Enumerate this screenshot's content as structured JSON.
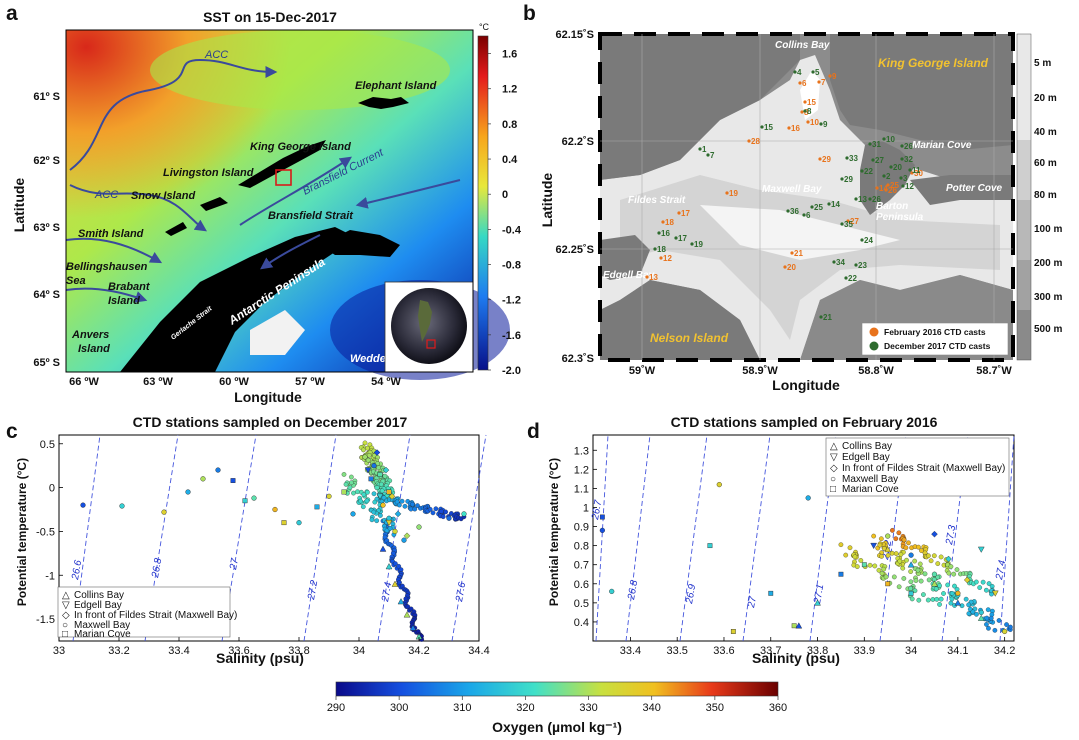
{
  "panels": {
    "a": {
      "letter": "a",
      "title": "SST on 15-Dec-2017",
      "xlabel": "Longitude",
      "ylabel": "Latitude",
      "x_ticks": [
        "66 ºW",
        "63 ºW",
        "60 ºW",
        "57 ºW",
        "54 ºW"
      ],
      "y_ticks": [
        "61º S",
        "62º S",
        "63º S",
        "64º S",
        "65º S"
      ],
      "colorbar_unit": "°C",
      "colorbar_ticks": [
        "1.6",
        "1.2",
        "0.8",
        "0.4",
        "0",
        "-0.4",
        "-0.8",
        "-1.2",
        "-1.6",
        "-2.0"
      ],
      "labels": {
        "acc1": "ACC",
        "acc2": "ACC",
        "elephant": "Elephant Island",
        "king_george": "King George Island",
        "livingston": "Livingston Island",
        "snow": "Snow Island",
        "smith": "Smith Island",
        "bransfield_current": "Bransfield Current",
        "bransfield_strait": "Bransfield Strait",
        "bellingshausen1": "Bellingshausen",
        "bellingshausen2": "Sea",
        "brabant1": "Brabant",
        "brabant2": "Island",
        "gerlache": "Gerlache Strait",
        "antarctic_peninsula": "Antarctic Peninsula",
        "anvers1": "Anvers",
        "anvers2": "Island",
        "weddell": "Weddell Sea"
      },
      "colors": {
        "land": "#000000",
        "arrow": "#3a4a9c"
      }
    },
    "b": {
      "letter": "b",
      "xlabel": "Longitude",
      "ylabel": "Latitude",
      "x_ticks": [
        "59˚W",
        "58.9˚W",
        "58.8˚W",
        "58.7˚W"
      ],
      "y_ticks": [
        "62.15˚S",
        "62.2˚S",
        "62.25˚S",
        "62.3˚S"
      ],
      "depth_ticks": [
        "5 m",
        "20 m",
        "40 m",
        "60 m",
        "80 m",
        "100 m",
        "200 m",
        "300 m",
        "500 m"
      ],
      "labels": {
        "collins": "Collins Bay",
        "kgi": "King George Island",
        "marian": "Marian Cove",
        "fildes": "Fildes Strait",
        "maxwell": "Maxwell Bay",
        "barton1": "Barton",
        "barton2": "Peninsula",
        "potter": "Potter Cove",
        "edgell": "Edgell Bay",
        "nelson": "Nelson Island"
      },
      "legend": [
        "February 2016 CTD casts",
        "December 2017 CTD casts"
      ],
      "colors": {
        "feb2016": "#e8731c",
        "dec2017": "#2e6b2e",
        "land": "#7a7a7a"
      },
      "stations_feb2016": [
        "6",
        "7",
        "8",
        "9",
        "10",
        "15",
        "16",
        "28",
        "29",
        "19",
        "18",
        "17",
        "12",
        "13",
        "21",
        "20",
        "27",
        "30",
        "14",
        "26",
        "25"
      ],
      "stations_dec2017": [
        "4",
        "5",
        "15",
        "8",
        "9",
        "1",
        "7",
        "31",
        "10",
        "26",
        "33",
        "27",
        "20",
        "22",
        "29",
        "2",
        "11",
        "3",
        "32",
        "12",
        "36",
        "25",
        "14",
        "13",
        "26",
        "6",
        "35",
        "24",
        "34",
        "23",
        "22",
        "21",
        "19",
        "17",
        "16",
        "18"
      ]
    },
    "c": {
      "letter": "c",
      "title": "CTD stations sampled on December 2017",
      "xlabel": "Salinity (psu)",
      "ylabel": "Potential temperature (°C)",
      "x_ticks": [
        "33",
        "33.2",
        "33.4",
        "33.6",
        "33.8",
        "34",
        "34.2",
        "34.4"
      ],
      "y_ticks": [
        "0.5",
        "0",
        "-0.5",
        "-1",
        "-1.5"
      ],
      "contours": [
        "26.6",
        "26.8",
        "27",
        "27.2",
        "27.4",
        "27.6"
      ],
      "legend": [
        "Collins Bay",
        "Edgell Bay",
        "In front of Fildes Strait (Maxwell Bay)",
        "Maxwell Bay",
        "Marian Cove"
      ]
    },
    "d": {
      "letter": "d",
      "title": "CTD stations sampled on February 2016",
      "xlabel": "Salinity (psu)",
      "ylabel": "Potential temperature (°C)",
      "x_ticks": [
        "33.4",
        "33.5",
        "33.6",
        "33.7",
        "33.8",
        "33.9",
        "34",
        "34.1",
        "34.2"
      ],
      "y_ticks": [
        "1.3",
        "1.2",
        "1.1",
        "1",
        "0.9",
        "0.8",
        "0.7",
        "0.6",
        "0.5",
        "0.4"
      ],
      "contours": [
        "26.7",
        "26.8",
        "26.9",
        "27",
        "27.1",
        "27.2",
        "27.3",
        "27.4"
      ],
      "legend": [
        "Collins Bay",
        "Edgell Bay",
        "In front of Fildes Strait (Maxwell Bay)",
        "Maxwell Bay",
        "Marian Cove"
      ]
    },
    "oxygen_colorbar": {
      "label": "Oxygen (µmol kg⁻¹)",
      "ticks": [
        "290",
        "300",
        "310",
        "320",
        "330",
        "340",
        "350",
        "360"
      ]
    }
  },
  "chart_data": [
    {
      "type": "scatter",
      "title": "CTD stations sampled on December 2017",
      "xlabel": "Salinity (psu)",
      "ylabel": "Potential temperature (°C)",
      "xlim": [
        33,
        34.4
      ],
      "ylim": [
        -1.75,
        0.6
      ],
      "colorbar": {
        "label": "Oxygen (µmol kg⁻¹)",
        "range": [
          290,
          360
        ]
      },
      "series": [
        {
          "name": "Maxwell Bay",
          "points": [
            [
              33.08,
              -0.2
            ],
            [
              33.21,
              -0.21
            ],
            [
              33.35,
              -0.28
            ],
            [
              33.43,
              -0.05
            ],
            [
              33.48,
              0.1
            ],
            [
              33.53,
              0.2
            ],
            [
              33.65,
              -0.12
            ],
            [
              33.72,
              -0.25
            ],
            [
              33.8,
              -0.4
            ],
            [
              33.9,
              -0.1
            ],
            [
              33.98,
              -0.3
            ],
            [
              34.02,
              0.35
            ],
            [
              34.05,
              0.25
            ],
            [
              34.06,
              0.0
            ],
            [
              34.08,
              -0.2
            ],
            [
              34.1,
              -0.35
            ],
            [
              34.12,
              -0.5
            ],
            [
              34.15,
              -0.6
            ],
            [
              34.2,
              -0.45
            ],
            [
              34.3,
              -0.35
            ],
            [
              34.35,
              -0.3
            ]
          ]
        },
        {
          "name": "Collins Bay",
          "points": [
            [
              34.08,
              -0.7
            ],
            [
              34.1,
              -0.9
            ],
            [
              34.12,
              -1.1
            ],
            [
              34.14,
              -1.3
            ],
            [
              34.16,
              -1.45
            ],
            [
              34.18,
              -1.6
            ],
            [
              34.2,
              -1.7
            ]
          ]
        },
        {
          "name": "Marian Cove",
          "points": [
            [
              33.58,
              0.08
            ],
            [
              33.62,
              -0.15
            ],
            [
              33.75,
              -0.4
            ],
            [
              33.86,
              -0.22
            ],
            [
              33.95,
              -0.05
            ],
            [
              34.04,
              0.1
            ],
            [
              34.07,
              0.15
            ],
            [
              34.1,
              -0.05
            ]
          ]
        },
        {
          "name": "In front of Fildes Strait (Maxwell Bay)",
          "points": [
            [
              34.06,
              0.4
            ],
            [
              34.09,
              0.2
            ],
            [
              34.11,
              -0.1
            ],
            [
              34.13,
              -0.3
            ],
            [
              34.16,
              -0.55
            ]
          ]
        },
        {
          "name": "Edgell Bay",
          "points": [
            [
              34.03,
              0.2
            ],
            [
              34.07,
              -0.1
            ],
            [
              34.1,
              -0.4
            ]
          ]
        }
      ],
      "density_contours": [
        26.6,
        26.8,
        27,
        27.2,
        27.4,
        27.6
      ]
    },
    {
      "type": "scatter",
      "title": "CTD stations sampled on February 2016",
      "xlabel": "Salinity (psu)",
      "ylabel": "Potential temperature (°C)",
      "xlim": [
        33.32,
        34.22
      ],
      "ylim": [
        0.3,
        1.38
      ],
      "colorbar": {
        "label": "Oxygen (µmol kg⁻¹)",
        "range": [
          290,
          360
        ]
      },
      "series": [
        {
          "name": "Maxwell Bay",
          "points": [
            [
              33.34,
              0.88
            ],
            [
              33.36,
              0.56
            ],
            [
              33.59,
              1.12
            ],
            [
              33.78,
              1.05
            ],
            [
              33.95,
              0.85
            ],
            [
              34.0,
              0.75
            ],
            [
              34.05,
              0.65
            ],
            [
              34.1,
              0.55
            ],
            [
              34.15,
              0.45
            ],
            [
              34.2,
              0.35
            ]
          ]
        },
        {
          "name": "Collins Bay",
          "points": [
            [
              33.76,
              0.38
            ],
            [
              33.8,
              0.5
            ],
            [
              33.95,
              0.78
            ],
            [
              34.0,
              0.7
            ],
            [
              34.05,
              0.6
            ],
            [
              34.1,
              0.5
            ],
            [
              34.15,
              0.42
            ]
          ]
        },
        {
          "name": "Edgell Bay",
          "points": [
            [
              33.92,
              0.8
            ],
            [
              34.15,
              0.78
            ],
            [
              34.18,
              0.55
            ]
          ]
        },
        {
          "name": "In front of Fildes Strait (Maxwell Bay)",
          "points": [
            [
              34.05,
              0.86
            ],
            [
              34.08,
              0.73
            ],
            [
              34.12,
              0.62
            ]
          ]
        },
        {
          "name": "Marian Cove",
          "points": [
            [
              33.34,
              0.95
            ],
            [
              33.57,
              0.8
            ],
            [
              33.62,
              0.35
            ],
            [
              33.7,
              0.55
            ],
            [
              33.75,
              0.38
            ],
            [
              33.85,
              0.65
            ],
            [
              33.9,
              0.7
            ],
            [
              33.95,
              0.6
            ],
            [
              34.0,
              0.55
            ]
          ]
        }
      ],
      "density_contours": [
        26.7,
        26.8,
        26.9,
        27,
        27.1,
        27.2,
        27.3,
        27.4
      ]
    }
  ]
}
